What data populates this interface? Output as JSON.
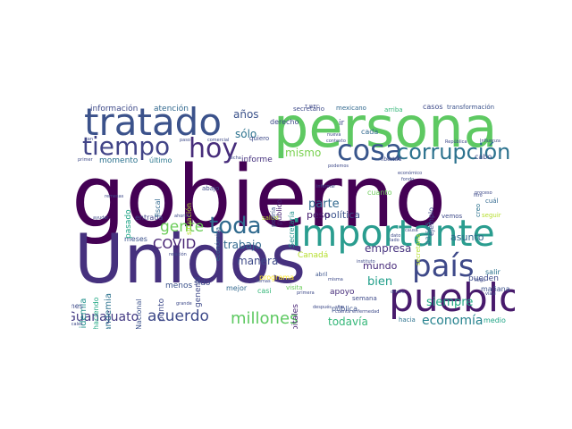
{
  "words": [
    {
      "text": "gobierno",
      "color": "#440154"
    },
    {
      "text": "Unidos",
      "color": "#46317e"
    },
    {
      "text": "persona",
      "color": "#5ec962"
    },
    {
      "text": "tratado",
      "color": "#3b528b"
    },
    {
      "text": "pueblo",
      "color": "#481a6c"
    },
    {
      "text": "importante",
      "color": "#2a9d8f"
    },
    {
      "text": "país",
      "color": "#3e4989"
    },
    {
      "text": "cosa",
      "color": "#39568c"
    },
    {
      "text": "tiempo",
      "color": "#414487"
    },
    {
      "text": "corrupción",
      "color": "#2c728e"
    },
    {
      "text": "hoy",
      "color": "#472d7b"
    },
    {
      "text": "toda",
      "color": "#306a8e"
    },
    {
      "text": "millones",
      "color": "#5ec962"
    },
    {
      "text": "acuerdo",
      "color": "#3e4a89"
    },
    {
      "text": "gente",
      "color": "#6ccd5a"
    },
    {
      "text": "COVID",
      "color": "#482475"
    },
    {
      "text": "economía",
      "color": "#26828e"
    },
    {
      "text": "Guanajuato",
      "color": "#443a83"
    },
    {
      "text": "años",
      "color": "#3b528b"
    },
    {
      "text": "sólo",
      "color": "#2c728e"
    },
    {
      "text": "mismo",
      "color": "#7ad151"
    },
    {
      "text": "parte",
      "color": "#31688e"
    },
    {
      "text": "bien",
      "color": "#1f9e89"
    },
    {
      "text": "siempre",
      "color": "#22a884"
    },
    {
      "text": "todavía",
      "color": "#35b779"
    },
    {
      "text": "manera",
      "color": "#3e4a89"
    },
    {
      "text": "trabajo",
      "color": "#31688e"
    },
    {
      "text": "empresa",
      "color": "#46327e"
    },
    {
      "text": "mundo",
      "color": "#472a7a"
    },
    {
      "text": "política",
      "color": "#3b528b"
    },
    {
      "text": "peso",
      "color": "#481f70"
    },
    {
      "text": "asunto",
      "color": "#31688e"
    },
    {
      "text": "pueden",
      "color": "#3e4a89"
    },
    {
      "text": "mañana",
      "color": "#3b528b"
    },
    {
      "text": "salir",
      "color": "#2c728e"
    },
    {
      "text": "cuál",
      "color": "#31688e"
    },
    {
      "text": "medio",
      "color": "#20a486"
    },
    {
      "text": "hacia",
      "color": "#2c728e"
    },
    {
      "text": "apoyo",
      "color": "#472d7b"
    },
    {
      "text": "pública",
      "color": "#3b528b"
    },
    {
      "text": "semana",
      "color": "#3e4a89"
    },
    {
      "text": "abril",
      "color": "#3b528b"
    },
    {
      "text": "hospitales",
      "color": "#482475"
    },
    {
      "text": "Canadá",
      "color": "#b5de2b"
    },
    {
      "text": "casi",
      "color": "#35b779"
    },
    {
      "text": "programa",
      "color": "#fde725"
    },
    {
      "text": "mejor",
      "color": "#31688e"
    },
    {
      "text": "sido",
      "color": "#3e4a89"
    },
    {
      "text": "menos",
      "color": "#3b528b"
    },
    {
      "text": "punto",
      "color": "#3e4a89"
    },
    {
      "text": "Nacional",
      "color": "#3b528b"
    },
    {
      "text": "haciendo",
      "color": "#22a884"
    },
    {
      "text": "pandemia",
      "color": "#2c728e"
    },
    {
      "text": "epidemia",
      "color": "#21918c"
    },
    {
      "text": "mes",
      "color": "#3e4a89"
    },
    {
      "text": "meses",
      "color": "#3b528b"
    },
    {
      "text": "entrada",
      "color": "#414487"
    },
    {
      "text": "vigor",
      "color": "#3e4a89"
    },
    {
      "text": "pasado",
      "color": "#20a486"
    },
    {
      "text": "fiscal",
      "color": "#31688e"
    },
    {
      "text": "momento",
      "color": "#2c728e"
    },
    {
      "text": "último",
      "color": "#2a788e"
    },
    {
      "text": "información",
      "color": "#3e4a89"
    },
    {
      "text": "atención",
      "color": "#31688e"
    },
    {
      "text": "informe",
      "color": "#46327e"
    },
    {
      "text": "secretario",
      "color": "#3e4a89"
    },
    {
      "text": "mexicano",
      "color": "#31688e"
    },
    {
      "text": "arriba",
      "color": "#35b779"
    },
    {
      "text": "casos",
      "color": "#3e4a89"
    },
    {
      "text": "transformación",
      "color": "#3b528b"
    },
    {
      "text": "derecho",
      "color": "#3e4a89"
    },
    {
      "text": "ir",
      "color": "#3e4a89"
    },
    {
      "text": "cada",
      "color": "#31688e"
    },
    {
      "text": "quiero",
      "color": "#3e4a89"
    },
    {
      "text": "libertad",
      "color": "#3e4a89"
    },
    {
      "text": "cabo",
      "color": "#3e4a89"
    },
    {
      "text": "ejemplo",
      "color": "#3e4a89"
    },
    {
      "text": "creo",
      "color": "#2c728e"
    },
    {
      "text": "vemos",
      "color": "#3e4a89"
    },
    {
      "text": "seguir",
      "color": "#b5de2b"
    },
    {
      "text": "países",
      "color": "#2c728e"
    },
    {
      "text": "cuanto",
      "color": "#6ccd5a"
    },
    {
      "text": "salud",
      "color": "#b5de2b"
    },
    {
      "text": "general",
      "color": "#3e4a89"
    },
    {
      "text": "Secretaría",
      "color": "#21918c"
    },
    {
      "text": "público",
      "color": "#482475"
    },
    {
      "text": "podría",
      "color": "#3b528b"
    },
    {
      "text": "económica",
      "color": "#31688e"
    },
    {
      "text": "situación",
      "color": "#b5de2b"
    },
    {
      "text": "abajo",
      "color": "#3e4a89"
    },
    {
      "text": "visita",
      "color": "#6ccd5a"
    },
    {
      "text": "secretaria",
      "color": "#b5de2b"
    },
    {
      "text": "ahorita",
      "color": "#3e4a89"
    },
    {
      "text": "ayudar",
      "color": "#3e4a89"
    },
    {
      "text": "después",
      "color": "#3e4a89"
    },
    {
      "text": "primera",
      "color": "#3e4a89"
    },
    {
      "text": "dinero",
      "color": "#3e4a89"
    },
    {
      "text": "proceso",
      "color": "#3e4a89"
    },
    {
      "text": "litro",
      "color": "#3e4a89"
    },
    {
      "text": "nueva",
      "color": "#3e4a89"
    },
    {
      "text": "paso",
      "color": "#3e4a89"
    },
    {
      "text": "comercial",
      "color": "#3e4a89"
    },
    {
      "text": "primer",
      "color": "#3e4a89"
    },
    {
      "text": "fiscales",
      "color": "#3e4a89"
    },
    {
      "text": "instituto",
      "color": "#3e4a89"
    },
    {
      "text": "enfermedad",
      "color": "#3e4a89"
    },
    {
      "text": "cuenta",
      "color": "#3e4a89"
    },
    {
      "text": "dato",
      "color": "#3e4a89"
    },
    {
      "text": "lado",
      "color": "#3e4a89"
    },
    {
      "text": "causa",
      "color": "#3e4a89"
    },
    {
      "text": "sino",
      "color": "#3e4a89"
    },
    {
      "text": "fondo",
      "color": "#3e4a89"
    },
    {
      "text": "económico",
      "color": "#3e4a89"
    },
    {
      "text": "informar",
      "color": "#3e4a89"
    },
    {
      "text": "podemos",
      "color": "#3e4a89"
    },
    {
      "text": "relación",
      "color": "#3e4a89"
    },
    {
      "text": "remesas",
      "color": "#3e4a89"
    },
    {
      "text": "T WEC",
      "color": "#3e4a89"
    },
    {
      "text": "can",
      "color": "#3e4a89"
    },
    {
      "text": "contexto",
      "color": "#3e4a89"
    },
    {
      "text": "República",
      "color": "#3e4a89"
    },
    {
      "text": "Influenza",
      "color": "#3e4a89"
    },
    {
      "text": "viaje",
      "color": "#3e4a89"
    },
    {
      "text": "llegó",
      "color": "#3e4a89"
    },
    {
      "text": "grande",
      "color": "#3e4a89"
    },
    {
      "text": "temas",
      "color": "#3e4a89"
    },
    {
      "text": "fecha",
      "color": "#3e4a89"
    },
    {
      "text": "misma",
      "color": "#3e4a89"
    }
  ]
}
